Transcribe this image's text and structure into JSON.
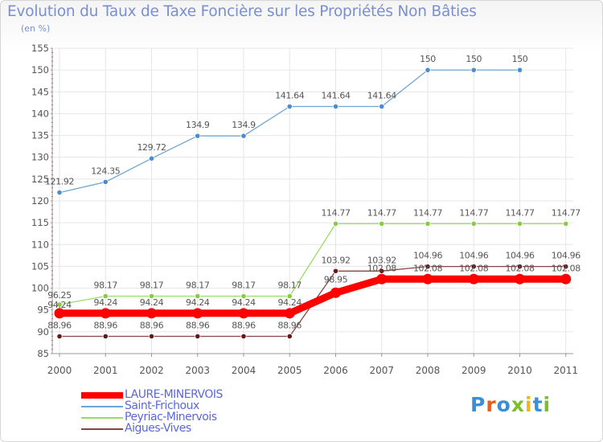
{
  "chart_data": {
    "type": "line",
    "title": "Evolution du Taux de Taxe Foncière sur les Propriétés Non Bâties",
    "subtitle": "(en %)",
    "xlabel": "",
    "ylabel": "",
    "x": [
      "2000",
      "2001",
      "2002",
      "2003",
      "2004",
      "2005",
      "2006",
      "2007",
      "2008",
      "2009",
      "2010",
      "2011"
    ],
    "ylim": [
      85,
      155
    ],
    "yticks": [
      "85",
      "90",
      "95",
      "100",
      "105",
      "110",
      "115",
      "120",
      "125",
      "130",
      "135",
      "140",
      "145",
      "150",
      "155"
    ],
    "series": [
      {
        "name": "LAURE-MINERVOIS",
        "color": "#ff0000",
        "values": [
          94.24,
          94.24,
          94.24,
          94.24,
          94.24,
          94.24,
          98.95,
          102.08,
          102.08,
          102.08,
          102.08,
          102.08
        ],
        "labels": [
          "94.24",
          "94.24",
          "94.24",
          "94.24",
          "94.24",
          "94.24",
          "98.95",
          "102.08",
          "102.08",
          "102.08",
          "102.08",
          "102.08"
        ]
      },
      {
        "name": "Saint-Frichoux",
        "color": "#6fa4d2",
        "values": [
          121.92,
          124.35,
          129.72,
          134.9,
          134.9,
          141.64,
          141.64,
          141.64,
          150,
          150,
          150,
          null
        ],
        "labels": [
          "121.92",
          "124.35",
          "129.72",
          "134.9",
          "134.9",
          "141.64",
          "141.64",
          "141.64",
          "150",
          "150",
          "150",
          ""
        ]
      },
      {
        "name": "Peyriac-Minervois",
        "color": "#99dd66",
        "values": [
          96.25,
          98.17,
          98.17,
          98.17,
          98.17,
          98.17,
          114.77,
          114.77,
          114.77,
          114.77,
          114.77,
          114.77
        ],
        "labels": [
          "96.25",
          "98.17",
          "98.17",
          "98.17",
          "98.17",
          "98.17",
          "114.77",
          "114.77",
          "114.77",
          "114.77",
          "114.77",
          "114.77"
        ]
      },
      {
        "name": "Aigues-Vives",
        "color": "#884444",
        "values": [
          88.96,
          88.96,
          88.96,
          88.96,
          88.96,
          88.96,
          103.92,
          103.92,
          104.96,
          104.96,
          104.96,
          104.96
        ],
        "labels": [
          "88.96",
          "88.96",
          "88.96",
          "88.96",
          "88.96",
          "88.96",
          "103.92",
          "103.92",
          "104.96",
          "104.96",
          "104.96",
          "104.96"
        ]
      }
    ],
    "legend": [
      "LAURE-MINERVOIS",
      "Saint-Frichoux",
      "Peyriac-Minervois",
      "Aigues-Vives"
    ]
  },
  "logo": {
    "text": "Proxiti",
    "colors": [
      "#3a8fd8",
      "#e85c1c",
      "#3a8fd8",
      "#7bbf2a",
      "#e8b81c",
      "#3a8fd8",
      "#7bbf2a"
    ]
  }
}
